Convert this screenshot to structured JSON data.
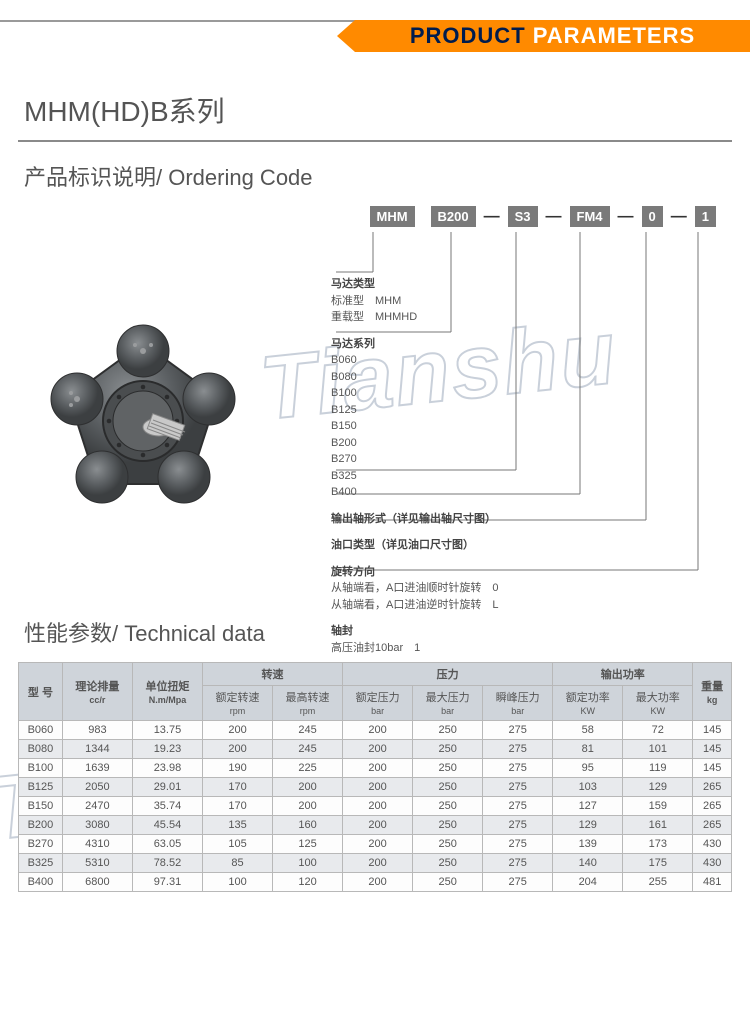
{
  "banner": {
    "product_word": "PRODUCT",
    "parameters_word": " PARAMETERS"
  },
  "series_title": "MHM(HD)B系列",
  "ordering_code_title": "产品标识说明/ Ordering Code",
  "technical_data_title": "性能参数/ Technical data",
  "watermark_text": "Tianshu",
  "code_segments": [
    "MHM",
    "B200",
    "S3",
    "FM4",
    "0",
    "1"
  ],
  "ordering_descriptions": [
    {
      "heading": "马达类型",
      "lines": [
        "标准型　MHM",
        "重载型　MHMHD"
      ]
    },
    {
      "heading": "马达系列",
      "lines": [
        "B060",
        "B080",
        "B100",
        "B125",
        "B150",
        "B200",
        "B270",
        "B325",
        "B400"
      ]
    },
    {
      "heading": "输出轴形式（详见输出轴尺寸图）",
      "lines": []
    },
    {
      "heading": "油口类型（详见油口尺寸图）",
      "lines": []
    },
    {
      "heading": "旋转方向",
      "lines": [
        "从轴端看，A口进油顺时针旋转　0",
        "从轴端看，A口进油逆时针旋转　L"
      ]
    },
    {
      "heading": "轴封",
      "lines": [
        "高压油封10bar　1"
      ]
    }
  ],
  "tech_table": {
    "columns_top": [
      {
        "label": "型 号",
        "rowspan": 2
      },
      {
        "label": "理论排量",
        "unit": "cc/r",
        "rowspan": 2
      },
      {
        "label": "单位扭矩",
        "unit": "N.m/Mpa",
        "rowspan": 2
      },
      {
        "label": "转速",
        "colspan": 2
      },
      {
        "label": "压力",
        "colspan": 3
      },
      {
        "label": "输出功率",
        "colspan": 2
      },
      {
        "label": "重量",
        "unit": "kg",
        "rowspan": 2
      }
    ],
    "columns_sub": [
      {
        "label": "额定转速",
        "unit": "rpm"
      },
      {
        "label": "最高转速",
        "unit": "rpm"
      },
      {
        "label": "额定压力",
        "unit": "bar"
      },
      {
        "label": "最大压力",
        "unit": "bar"
      },
      {
        "label": "瞬峰压力",
        "unit": "bar"
      },
      {
        "label": "额定功率",
        "unit": "KW"
      },
      {
        "label": "最大功率",
        "unit": "KW"
      }
    ],
    "rows": [
      [
        "B060",
        "983",
        "13.75",
        "200",
        "245",
        "200",
        "250",
        "275",
        "58",
        "72",
        "145"
      ],
      [
        "B080",
        "1344",
        "19.23",
        "200",
        "245",
        "200",
        "250",
        "275",
        "81",
        "101",
        "145"
      ],
      [
        "B100",
        "1639",
        "23.98",
        "190",
        "225",
        "200",
        "250",
        "275",
        "95",
        "119",
        "145"
      ],
      [
        "B125",
        "2050",
        "29.01",
        "170",
        "200",
        "200",
        "250",
        "275",
        "103",
        "129",
        "265"
      ],
      [
        "B150",
        "2470",
        "35.74",
        "170",
        "200",
        "200",
        "250",
        "275",
        "127",
        "159",
        "265"
      ],
      [
        "B200",
        "3080",
        "45.54",
        "135",
        "160",
        "200",
        "250",
        "275",
        "129",
        "161",
        "265"
      ],
      [
        "B270",
        "4310",
        "63.05",
        "105",
        "125",
        "200",
        "250",
        "275",
        "139",
        "173",
        "430"
      ],
      [
        "B325",
        "5310",
        "78.52",
        "85",
        "100",
        "200",
        "250",
        "275",
        "140",
        "175",
        "430"
      ],
      [
        "B400",
        "6800",
        "97.31",
        "100",
        "120",
        "200",
        "250",
        "275",
        "204",
        "255",
        "481"
      ]
    ]
  },
  "illustration_colors": {
    "body": "#5a5e61",
    "body_dark": "#3c3f41",
    "body_light": "#888c8e",
    "shaft": "#c9c9c9"
  }
}
